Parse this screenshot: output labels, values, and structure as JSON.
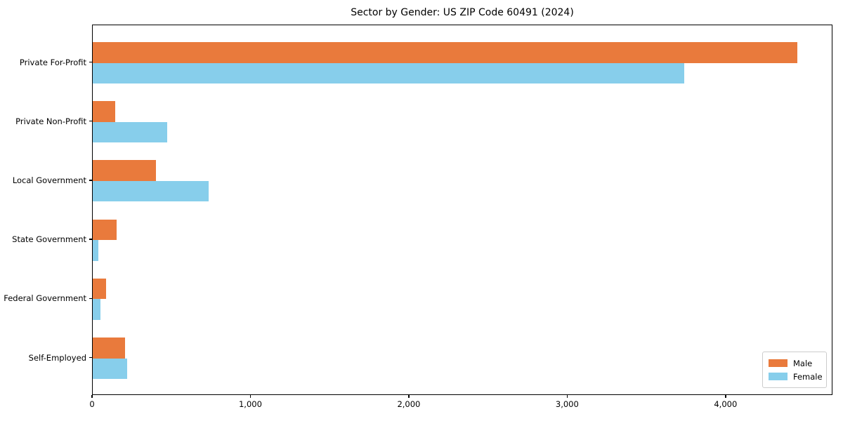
{
  "title": "Sector by Gender: US ZIP Code 60491 (2024)",
  "chart_data": {
    "type": "bar",
    "orientation": "horizontal",
    "title": "Sector by Gender: US ZIP Code 60491 (2024)",
    "xlabel": "",
    "ylabel": "",
    "categories": [
      "Private For-Profit",
      "Private Non-Profit",
      "Local Government",
      "State Government",
      "Federal Government",
      "Self-Employed"
    ],
    "series": [
      {
        "name": "Male",
        "color": "#E97A3C",
        "values": [
          4450,
          140,
          400,
          150,
          85,
          205
        ]
      },
      {
        "name": "Female",
        "color": "#87CEEB",
        "values": [
          3735,
          470,
          730,
          35,
          50,
          215
        ]
      }
    ],
    "xlim": [
      0,
      4675
    ],
    "x_ticks": [
      0,
      1000,
      2000,
      3000,
      4000
    ],
    "x_tick_labels": [
      "0",
      "1,000",
      "2,000",
      "3,000",
      "4,000"
    ],
    "grid": false,
    "legend_position": "lower right",
    "axis_color": "#000000",
    "background_color": "#ffffff"
  },
  "legend": {
    "items": [
      {
        "label": "Male",
        "color": "#E97A3C"
      },
      {
        "label": "Female",
        "color": "#87CEEB"
      }
    ]
  }
}
